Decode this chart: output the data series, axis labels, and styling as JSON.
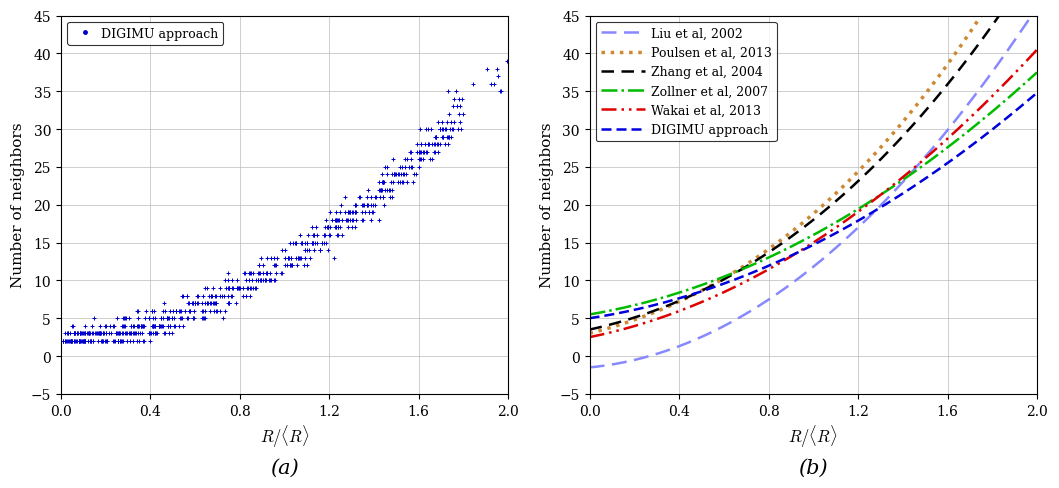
{
  "ylim": [
    -5,
    45
  ],
  "xlim": [
    0,
    2
  ],
  "yticks": [
    -5,
    0,
    5,
    10,
    15,
    20,
    25,
    30,
    35,
    40,
    45
  ],
  "xticks": [
    0,
    0.4,
    0.8,
    1.2,
    1.6,
    2.0
  ],
  "ylabel": "Number of neighbors",
  "xlabel": "R/\\langle R\\rangle",
  "panel_a_label": "(a)",
  "panel_b_label": "(b)",
  "scatter_color": "#0000cc",
  "legend_a_label": "DIGIMU approach",
  "liu_color": "#8888ff",
  "poulsen_color": "#cc8833",
  "zhang_color": "#000000",
  "zollner_color": "#00bb00",
  "wakai_color": "#dd0000",
  "digimu_b_color": "#0000dd"
}
